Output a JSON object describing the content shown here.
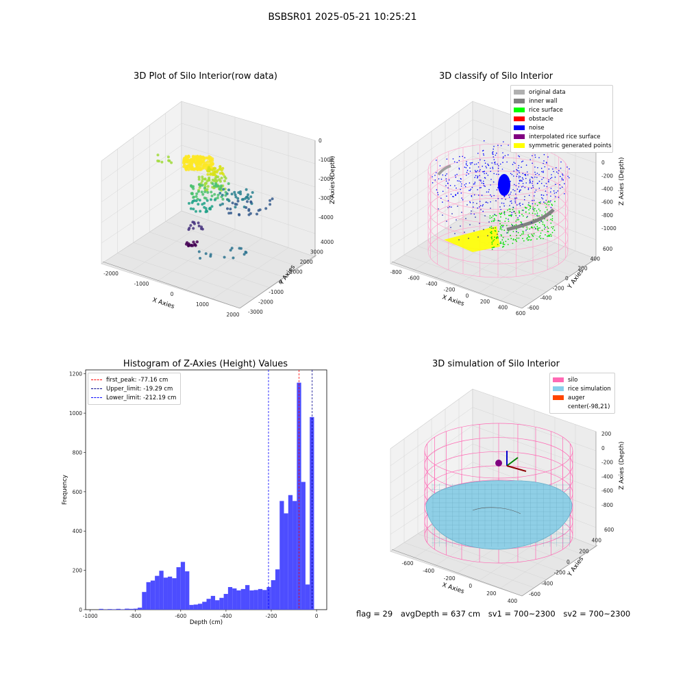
{
  "figure_title": "BSBSR01 2025-05-21 10:25:21",
  "panels": {
    "raw": {
      "title": "3D Plot of Silo Interior(row data)",
      "x_label": "X Axies",
      "y_label": "Y Axies",
      "z_label": "Z Axies (Depth)",
      "x_ticks": [
        "-2000",
        "-1000",
        "0",
        "1000",
        "2000"
      ],
      "y_ticks": [
        "-3000",
        "-2000",
        "-1000",
        "0",
        "1000",
        "2000",
        "3000",
        "4000"
      ],
      "z_ticks": [
        "0",
        "-1000",
        "-2000",
        "-3000",
        "-4000"
      ]
    },
    "classify": {
      "title": "3D classify of Silo Interior",
      "x_label": "X Axies",
      "y_label": "Y Axies",
      "z_label": "Z Axies (Depth)",
      "x_ticks": [
        "-800",
        "-600",
        "-400",
        "-200",
        "0",
        "200",
        "400",
        "600"
      ],
      "y_ticks": [
        "-600",
        "-400",
        "-200",
        "0",
        "200",
        "400",
        "600"
      ],
      "z_ticks": [
        "200",
        "0",
        "-200",
        "-400",
        "-600",
        "-800",
        "-1000"
      ],
      "legend": [
        {
          "label": "original data",
          "color": "#b0b0b0"
        },
        {
          "label": "inner wall",
          "color": "#808080"
        },
        {
          "label": "rice surface",
          "color": "#00ff00"
        },
        {
          "label": "obstacle",
          "color": "#ff0000"
        },
        {
          "label": "noise",
          "color": "#0000ff"
        },
        {
          "label": "interpolated rice surface",
          "color": "#800080"
        },
        {
          "label": "symmetric generated points",
          "color": "#ffff00"
        }
      ]
    },
    "simulation": {
      "title": "3D simulation of Silo Interior",
      "x_label": "X Axies",
      "y_label": "Y Axies",
      "z_label": "Z Axies (Depth)",
      "x_ticks": [
        "-600",
        "-400",
        "-200",
        "0",
        "200",
        "400"
      ],
      "y_ticks": [
        "-600",
        "-400",
        "-200",
        "0",
        "200",
        "400",
        "600"
      ],
      "z_ticks": [
        "200",
        "0",
        "-200",
        "-400",
        "-600",
        "-800"
      ],
      "legend": [
        {
          "label": "silo",
          "color": "#ff69b4"
        },
        {
          "label": "rice simulation",
          "color": "#87ceeb"
        },
        {
          "label": "auger",
          "color": "#ff4500"
        },
        {
          "label": "center(-98,21)",
          "color": "#ffffff"
        }
      ]
    }
  },
  "status": {
    "flag": "flag = 29",
    "avg_depth": "avgDepth = 637 cm",
    "sv1": "sv1 = 700~2300",
    "sv2": "sv2 = 700~2300"
  },
  "chart_data": [
    {
      "type": "bar",
      "title": "Histogram of Z-Axies (Height) Values",
      "xlabel": "Depth (cm)",
      "ylabel": "Frequency",
      "xlim": [
        -1020,
        45
      ],
      "ylim": [
        0,
        1220
      ],
      "x_ticks": [
        -1000,
        -800,
        -600,
        -400,
        -200,
        0
      ],
      "y_ticks": [
        0,
        200,
        400,
        600,
        800,
        1000,
        1200
      ],
      "bar_color": "#4d4dff",
      "bins": [
        {
          "x0": -980,
          "x1": -961,
          "count": 0
        },
        {
          "x0": -961,
          "x1": -942,
          "count": 4
        },
        {
          "x0": -942,
          "x1": -923,
          "count": 1
        },
        {
          "x0": -923,
          "x1": -904,
          "count": 3
        },
        {
          "x0": -904,
          "x1": -885,
          "count": 2
        },
        {
          "x0": -885,
          "x1": -866,
          "count": 4
        },
        {
          "x0": -866,
          "x1": -847,
          "count": 2
        },
        {
          "x0": -847,
          "x1": -828,
          "count": 5
        },
        {
          "x0": -828,
          "x1": -809,
          "count": 4
        },
        {
          "x0": -809,
          "x1": -790,
          "count": 5
        },
        {
          "x0": -790,
          "x1": -771,
          "count": 10
        },
        {
          "x0": -771,
          "x1": -752,
          "count": 90
        },
        {
          "x0": -752,
          "x1": -733,
          "count": 140
        },
        {
          "x0": -733,
          "x1": -714,
          "count": 148
        },
        {
          "x0": -714,
          "x1": -695,
          "count": 172
        },
        {
          "x0": -695,
          "x1": -676,
          "count": 198
        },
        {
          "x0": -676,
          "x1": -657,
          "count": 163
        },
        {
          "x0": -657,
          "x1": -638,
          "count": 168
        },
        {
          "x0": -638,
          "x1": -619,
          "count": 160
        },
        {
          "x0": -619,
          "x1": -600,
          "count": 216
        },
        {
          "x0": -600,
          "x1": -581,
          "count": 243
        },
        {
          "x0": -581,
          "x1": -562,
          "count": 195
        },
        {
          "x0": -562,
          "x1": -543,
          "count": 24
        },
        {
          "x0": -543,
          "x1": -524,
          "count": 26
        },
        {
          "x0": -524,
          "x1": -505,
          "count": 30
        },
        {
          "x0": -505,
          "x1": -486,
          "count": 40
        },
        {
          "x0": -486,
          "x1": -467,
          "count": 55
        },
        {
          "x0": -467,
          "x1": -448,
          "count": 70
        },
        {
          "x0": -448,
          "x1": -429,
          "count": 48
        },
        {
          "x0": -429,
          "x1": -410,
          "count": 60
        },
        {
          "x0": -410,
          "x1": -391,
          "count": 80
        },
        {
          "x0": -391,
          "x1": -372,
          "count": 115
        },
        {
          "x0": -372,
          "x1": -353,
          "count": 108
        },
        {
          "x0": -353,
          "x1": -334,
          "count": 98
        },
        {
          "x0": -334,
          "x1": -315,
          "count": 105
        },
        {
          "x0": -315,
          "x1": -296,
          "count": 125
        },
        {
          "x0": -296,
          "x1": -277,
          "count": 98
        },
        {
          "x0": -277,
          "x1": -258,
          "count": 100
        },
        {
          "x0": -258,
          "x1": -239,
          "count": 105
        },
        {
          "x0": -239,
          "x1": -220,
          "count": 100
        },
        {
          "x0": -220,
          "x1": -201,
          "count": 115
        },
        {
          "x0": -201,
          "x1": -182,
          "count": 150
        },
        {
          "x0": -182,
          "x1": -163,
          "count": 205
        },
        {
          "x0": -163,
          "x1": -144,
          "count": 553
        },
        {
          "x0": -144,
          "x1": -125,
          "count": 490
        },
        {
          "x0": -125,
          "x1": -106,
          "count": 583
        },
        {
          "x0": -106,
          "x1": -87,
          "count": 553
        },
        {
          "x0": -87,
          "x1": -68,
          "count": 1155
        },
        {
          "x0": -68,
          "x1": -49,
          "count": 650
        },
        {
          "x0": -49,
          "x1": -30,
          "count": 128
        },
        {
          "x0": -30,
          "x1": -11,
          "count": 980
        }
      ],
      "vlines": [
        {
          "label": "first_peak: -77.16 cm",
          "x": -77.16,
          "color": "#ff0000"
        },
        {
          "label": "Upper_limit: -19.29 cm",
          "x": -19.29,
          "color": "#00008b"
        },
        {
          "label": "Lower_limit: -212.19 cm",
          "x": -212.19,
          "color": "#0000ff"
        }
      ],
      "legend_position": "upper-left"
    }
  ]
}
